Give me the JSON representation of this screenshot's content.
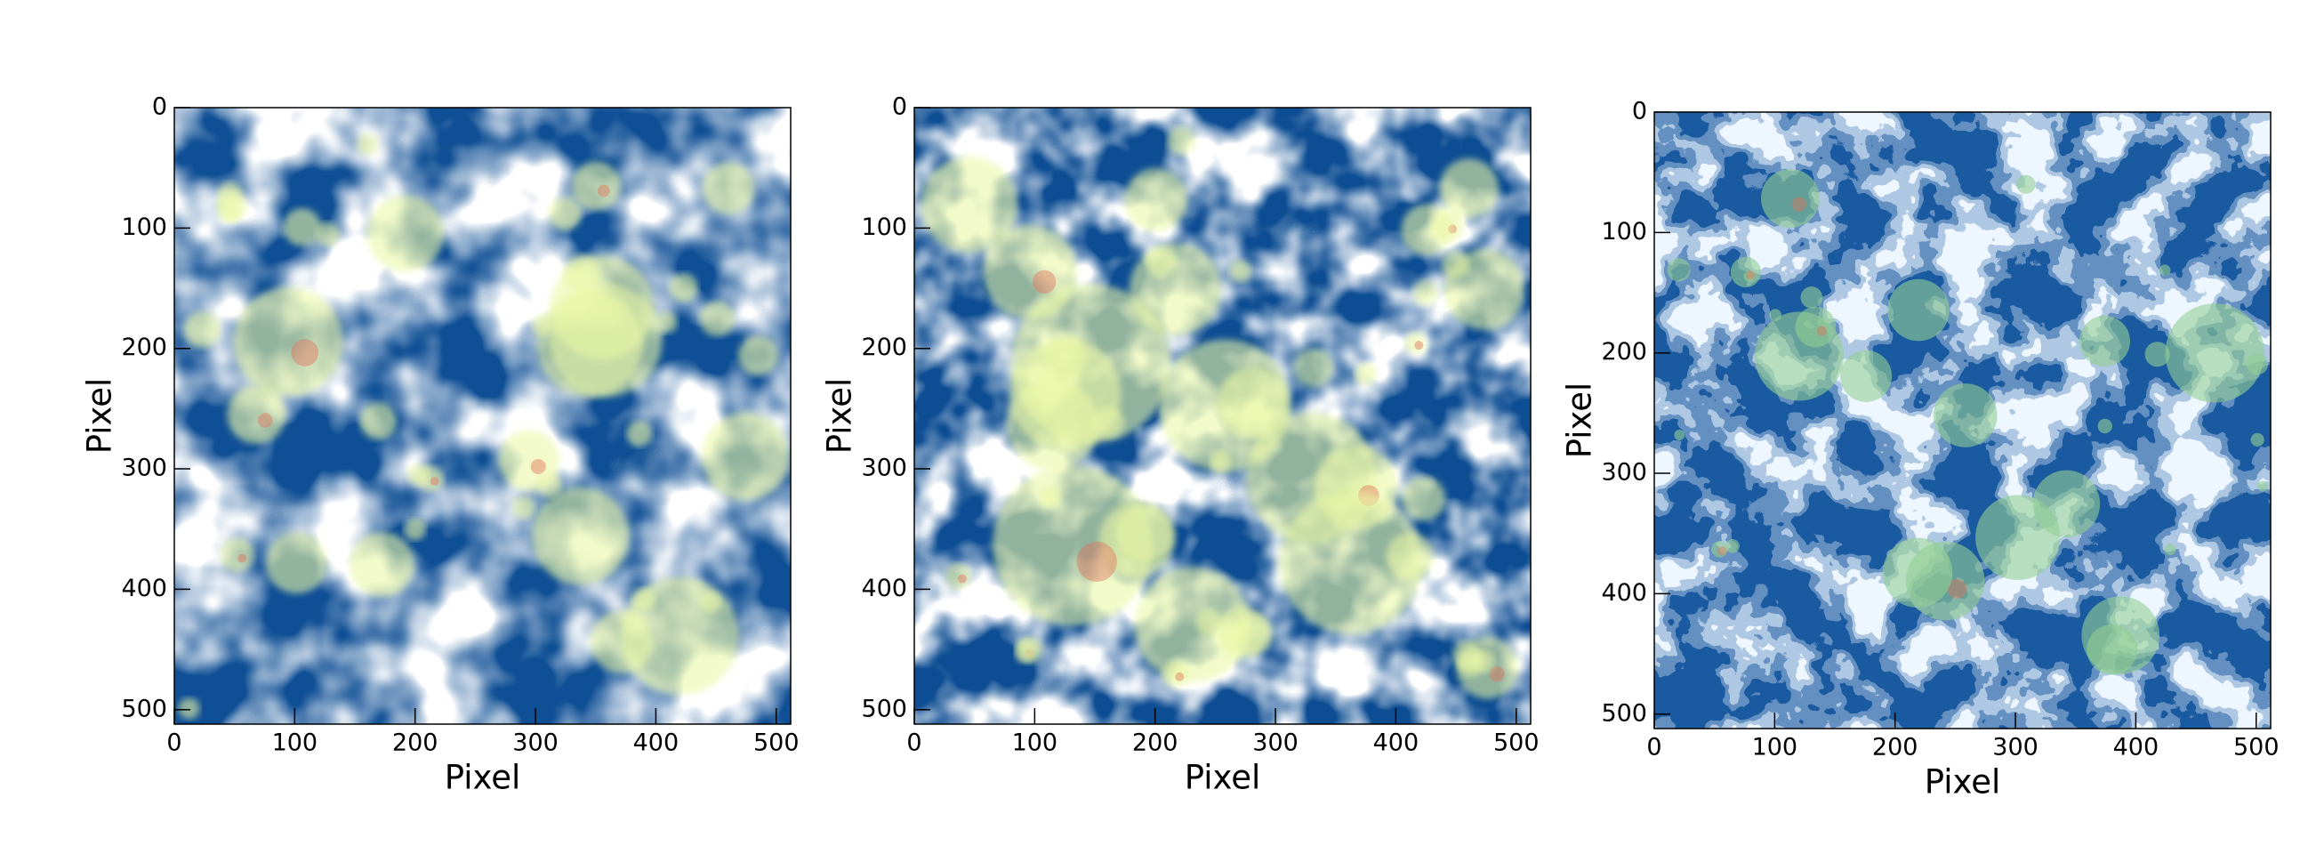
{
  "chart_data": [
    {
      "type": "image",
      "xlabel": "Pixel",
      "ylabel": "Pixel",
      "xlim": [
        0,
        512
      ],
      "ylim": [
        512,
        0
      ],
      "xticks": [
        0,
        100,
        200,
        300,
        400,
        500
      ],
      "yticks": [
        0,
        100,
        200,
        300,
        400,
        500
      ]
    },
    {
      "type": "image",
      "xlabel": "Pixel",
      "ylabel": "Pixel",
      "xlim": [
        0,
        512
      ],
      "ylim": [
        512,
        0
      ],
      "xticks": [
        0,
        100,
        200,
        300,
        400,
        500
      ],
      "yticks": [
        0,
        100,
        200,
        300,
        400,
        500
      ]
    },
    {
      "type": "image",
      "xlabel": "Pixel",
      "ylabel": "Pixel",
      "xlim": [
        0,
        512
      ],
      "ylim": [
        512,
        0
      ],
      "xticks": [
        0,
        100,
        200,
        300,
        400,
        500
      ],
      "yticks": [
        0,
        100,
        200,
        300,
        400,
        500
      ]
    }
  ]
}
